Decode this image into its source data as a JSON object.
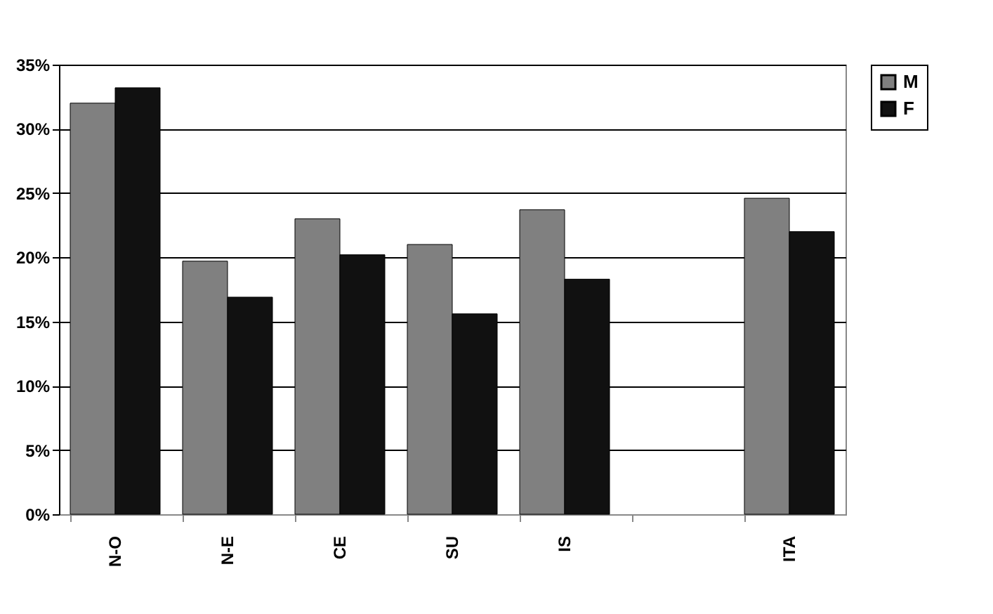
{
  "chart_data": {
    "type": "bar",
    "categories": [
      "N-O",
      "N-E",
      "CE",
      "SU",
      "IS",
      null,
      "ITA"
    ],
    "series": [
      {
        "name": "M",
        "color": "#808080",
        "values": [
          32.0,
          19.7,
          23.0,
          21.0,
          23.7,
          null,
          24.6
        ]
      },
      {
        "name": "F",
        "color": "#111111",
        "values": [
          33.2,
          16.9,
          20.2,
          15.6,
          18.3,
          null,
          22.0
        ]
      }
    ],
    "ylim": [
      0,
      35
    ],
    "yticks": [
      {
        "value": 0,
        "label": "0%"
      },
      {
        "value": 5,
        "label": "5%"
      },
      {
        "value": 10,
        "label": "10%"
      },
      {
        "value": 15,
        "label": "15%"
      },
      {
        "value": 20,
        "label": "20%"
      },
      {
        "value": 25,
        "label": "25%"
      },
      {
        "value": 30,
        "label": "30%"
      },
      {
        "value": 35,
        "label": "35%"
      }
    ],
    "grid": "y",
    "legend": "right"
  }
}
